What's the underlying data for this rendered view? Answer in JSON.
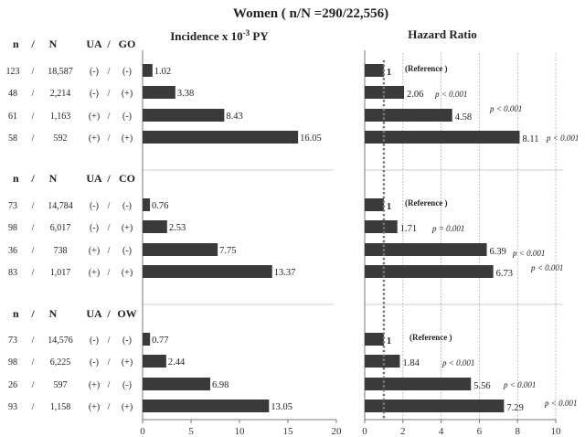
{
  "title": "Women  ( n/N =290/22,556)",
  "panels": {
    "incidence": {
      "title": "Incidence x 10",
      "title_sup": "-3",
      "title_unit": " PY"
    },
    "hazard": {
      "title": "Hazard Ratio"
    }
  },
  "groups": [
    {
      "header": {
        "n": "n",
        "slash": "/",
        "N": "N",
        "ua": "UA",
        "sep": "/",
        "other": "GO"
      },
      "rows": [
        {
          "n": "123",
          "N": "18,587",
          "ua": "(-)",
          "other": "(-)"
        },
        {
          "n": "48",
          "N": "2,214",
          "ua": "(-)",
          "other": "(+)"
        },
        {
          "n": "61",
          "N": "1,163",
          "ua": "(+)",
          "other": "(-)"
        },
        {
          "n": "58",
          "N": "592",
          "ua": "(+)",
          "other": "(+)"
        }
      ]
    },
    {
      "header": {
        "n": "n",
        "slash": "/",
        "N": "N",
        "ua": "UA",
        "sep": "/",
        "other": "CO"
      },
      "rows": [
        {
          "n": "73",
          "N": "14,784",
          "ua": "(-)",
          "other": "(-)"
        },
        {
          "n": "98",
          "N": "6,017",
          "ua": "(-)",
          "other": "(+)"
        },
        {
          "n": "36",
          "N": "738",
          "ua": "(+)",
          "other": "(-)"
        },
        {
          "n": "83",
          "N": "1,017",
          "ua": "(+)",
          "other": "(+)"
        }
      ]
    },
    {
      "header": {
        "n": "n",
        "slash": "/",
        "N": "N",
        "ua": "UA",
        "sep": "/",
        "other": "OW"
      },
      "rows": [
        {
          "n": "73",
          "N": "14,576",
          "ua": "(-)",
          "other": "(-)"
        },
        {
          "n": "98",
          "N": "6,225",
          "ua": "(-)",
          "other": "(+)"
        },
        {
          "n": "26",
          "N": "597",
          "ua": "(+)",
          "other": "(-)"
        },
        {
          "n": "93",
          "N": "1,158",
          "ua": "(+)",
          "other": "(+)"
        }
      ]
    }
  ],
  "chart_data": [
    {
      "type": "bar",
      "orientation": "horizontal",
      "title": "Incidence x 10-3 PY",
      "xlim": [
        0,
        20
      ],
      "xticks": [
        0,
        5,
        10,
        15,
        20
      ],
      "xtick_labels": [
        "0",
        "5",
        "10",
        "15",
        "20"
      ],
      "values": [
        1.02,
        3.38,
        8.43,
        16.05,
        0.76,
        2.53,
        7.75,
        13.37,
        0.77,
        2.44,
        6.98,
        13.05
      ],
      "value_labels": [
        "1.02",
        "3.38",
        "8.43",
        "16.05",
        "0.76",
        "2.53",
        "7.75",
        "13.37",
        "0.77",
        "2.44",
        "6.98",
        "13.05"
      ]
    },
    {
      "type": "bar",
      "orientation": "horizontal",
      "title": "Hazard Ratio",
      "xlim": [
        0,
        10
      ],
      "xticks": [
        0,
        2,
        4,
        6,
        8,
        10
      ],
      "xtick_labels": [
        "0",
        "2",
        "4",
        "6",
        "8",
        "10"
      ],
      "reference_line": 1,
      "values": [
        1,
        2.06,
        4.58,
        8.11,
        1,
        1.71,
        6.39,
        6.73,
        1,
        1.84,
        5.56,
        7.29
      ],
      "value_labels": [
        "1",
        "2.06",
        "4.58",
        "8.11",
        "1",
        "1.71",
        "6.39",
        "6.73",
        "1",
        "1.84",
        "5.56",
        "7.29"
      ],
      "notes": [
        "(Reference )",
        "p < 0.001",
        "p < 0.001",
        "p < 0.001",
        "(Reference )",
        "p = 0.001",
        "p < 0.001",
        "p < 0.001",
        "(Reference )",
        "p < 0.001",
        "p < 0.001",
        "p < 0.001"
      ]
    }
  ]
}
